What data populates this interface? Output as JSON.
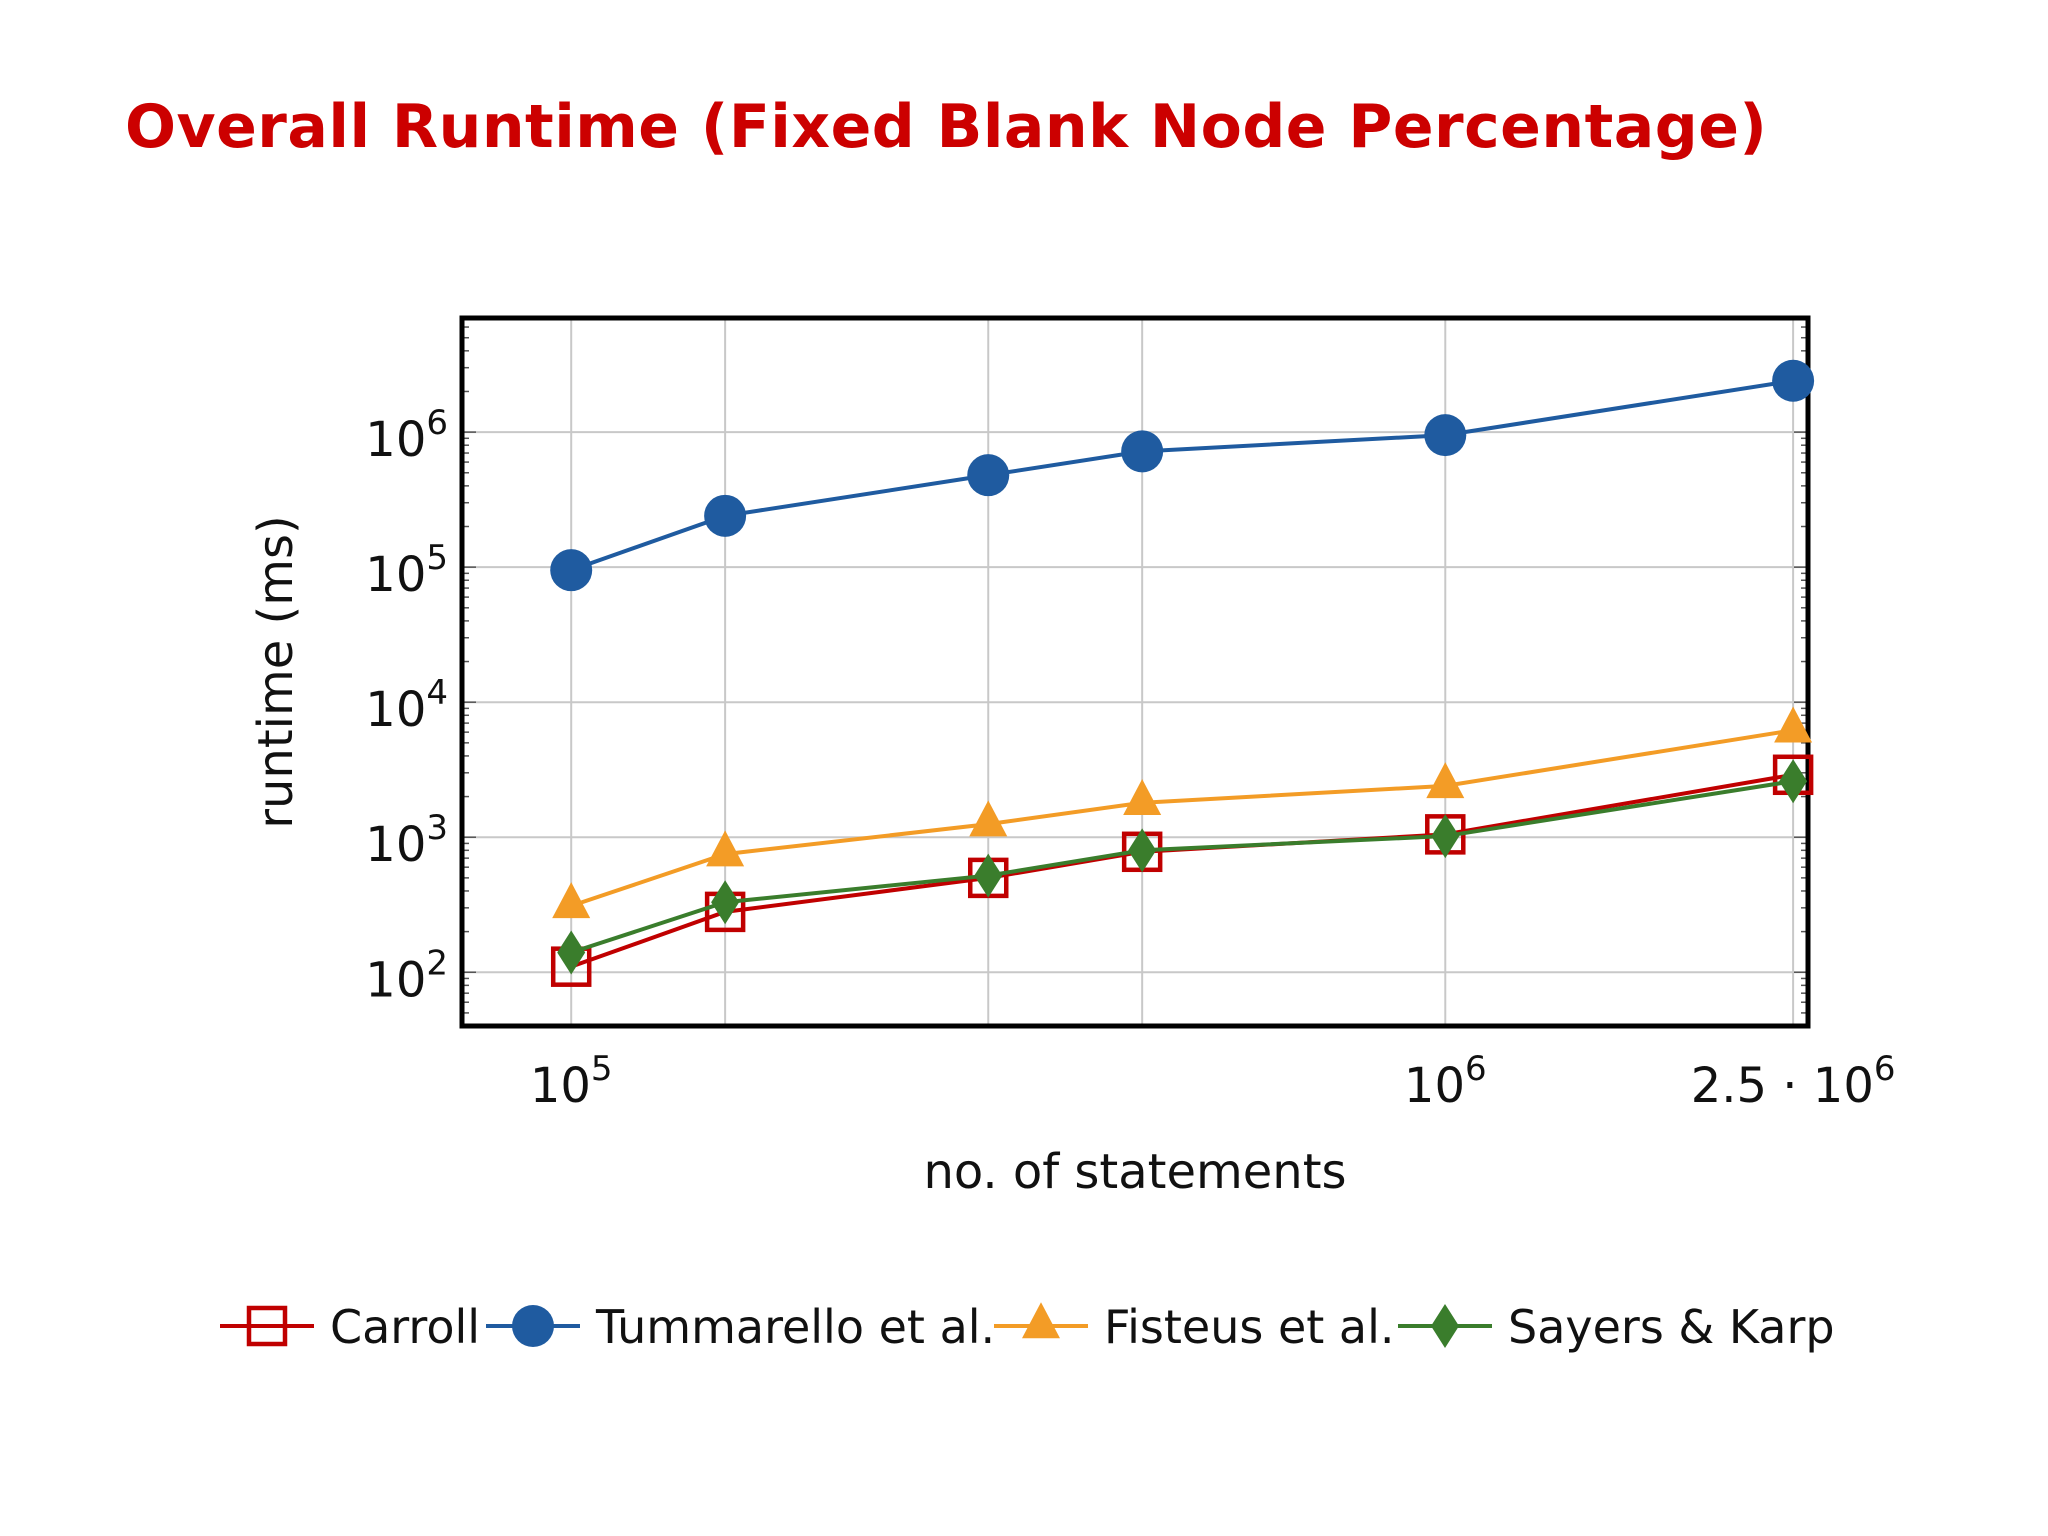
{
  "slide": {
    "title": "Overall Runtime (Fixed Blank Node Percentage)"
  },
  "chart_data": {
    "type": "line",
    "title": "",
    "xlabel": "no. of statements",
    "ylabel": "runtime (ms)",
    "x_scale": "log",
    "y_scale": "log",
    "xlim": [
      75000,
      2600000
    ],
    "ylim": [
      40,
      7000000
    ],
    "x_ticks": [
      {
        "value": 100000,
        "base": "10",
        "exp": "5",
        "prefix": ""
      },
      {
        "value": 1000000,
        "base": "10",
        "exp": "6",
        "prefix": ""
      },
      {
        "value": 2500000,
        "base": "10",
        "exp": "6",
        "prefix": "2.5 · "
      }
    ],
    "x_gridlines": [
      100000,
      150000,
      300000,
      450000,
      1000000,
      2500000
    ],
    "y_ticks": [
      {
        "value": 100,
        "base": "10",
        "exp": "2"
      },
      {
        "value": 1000,
        "base": "10",
        "exp": "3"
      },
      {
        "value": 10000,
        "base": "10",
        "exp": "4"
      },
      {
        "value": 100000,
        "base": "10",
        "exp": "5"
      },
      {
        "value": 1000000,
        "base": "10",
        "exp": "6"
      }
    ],
    "grid": true,
    "legend_position": "bottom",
    "x": [
      100000,
      150000,
      300000,
      450000,
      1000000,
      2500000
    ],
    "series": [
      {
        "name": "Carroll",
        "color": "#c00000",
        "marker": "square-open",
        "values": [
          110,
          280,
          500,
          780,
          1050,
          2900
        ]
      },
      {
        "name": "Tummarello et al.",
        "color": "#1f5ba0",
        "marker": "circle",
        "values": [
          95000,
          240000,
          480000,
          720000,
          950000,
          2400000
        ]
      },
      {
        "name": "Fisteus et al.",
        "color": "#f39c26",
        "marker": "triangle",
        "values": [
          310,
          750,
          1250,
          1800,
          2400,
          6200
        ]
      },
      {
        "name": "Sayers & Karp",
        "color": "#3a7d2c",
        "marker": "diamond",
        "values": [
          140,
          330,
          520,
          800,
          1020,
          2600
        ]
      }
    ]
  }
}
